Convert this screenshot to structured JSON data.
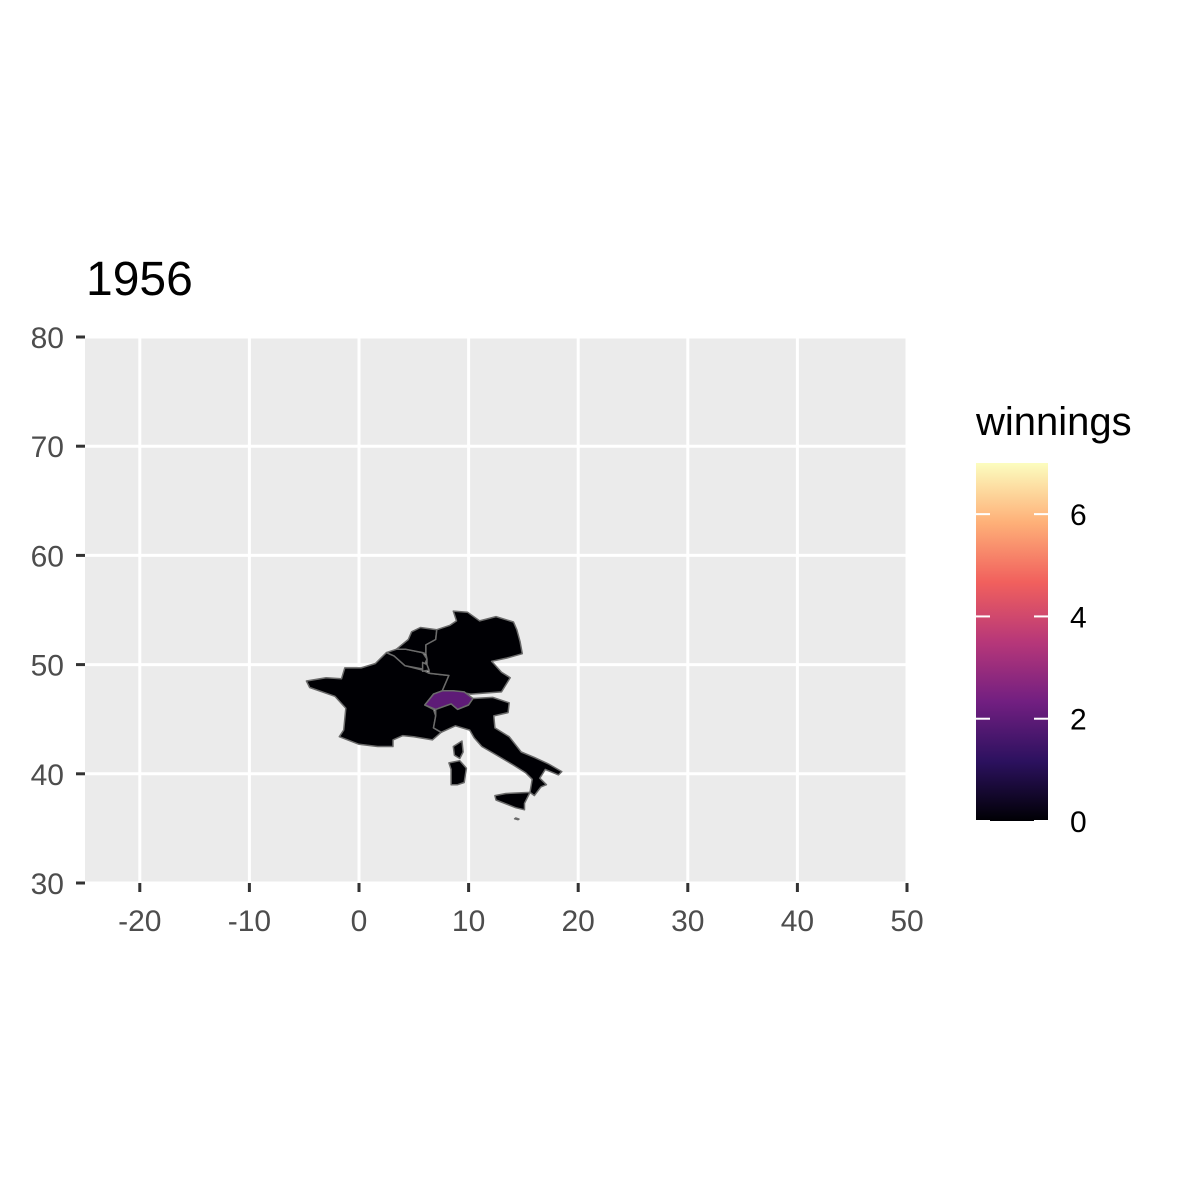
{
  "title": "1956",
  "chart_data": {
    "type": "choropleth-map",
    "title": "1956",
    "xlim": [
      -25,
      50
    ],
    "ylim": [
      30,
      80
    ],
    "x_ticks": [
      -20,
      -10,
      0,
      10,
      20,
      30,
      40,
      50
    ],
    "x_tick_labels": [
      "-20",
      "-10",
      "0",
      "10",
      "20",
      "30",
      "40",
      "50"
    ],
    "y_ticks": [
      30,
      40,
      50,
      60,
      70,
      80
    ],
    "y_tick_labels": [
      "30",
      "40",
      "50",
      "60",
      "70",
      "80"
    ],
    "grid": true,
    "background": "#ebebeb",
    "border_color": "#6b6b6b",
    "fill_variable": "winnings",
    "regions": [
      {
        "name": "France",
        "value": 0,
        "polygons": [
          [
            [
              -4.8,
              48.5
            ],
            [
              -3.0,
              48.8
            ],
            [
              -1.6,
              48.7
            ],
            [
              -1.3,
              49.7
            ],
            [
              0.2,
              49.7
            ],
            [
              1.5,
              50.1
            ],
            [
              2.5,
              51.1
            ],
            [
              3.2,
              50.8
            ],
            [
              4.2,
              49.9
            ],
            [
              5.8,
              49.5
            ],
            [
              6.4,
              49.2
            ],
            [
              8.2,
              49.0
            ],
            [
              7.6,
              47.6
            ],
            [
              6.8,
              47.3
            ],
            [
              6.0,
              46.3
            ],
            [
              6.8,
              45.9
            ],
            [
              7.0,
              45.3
            ],
            [
              6.8,
              44.2
            ],
            [
              7.5,
              43.8
            ],
            [
              6.7,
              43.1
            ],
            [
              5.0,
              43.4
            ],
            [
              4.0,
              43.5
            ],
            [
              3.1,
              43.1
            ],
            [
              3.1,
              42.5
            ],
            [
              1.7,
              42.5
            ],
            [
              0.0,
              42.7
            ],
            [
              -1.8,
              43.4
            ],
            [
              -1.4,
              44.0
            ],
            [
              -1.2,
              46.0
            ],
            [
              -2.2,
              47.1
            ],
            [
              -4.5,
              47.9
            ]
          ]
        ]
      },
      {
        "name": "Corsica",
        "value": 0,
        "polygons": [
          [
            [
              9.4,
              43.0
            ],
            [
              9.5,
              42.0
            ],
            [
              9.2,
              41.4
            ],
            [
              8.7,
              41.7
            ],
            [
              8.6,
              42.5
            ]
          ]
        ]
      },
      {
        "name": "Belgium",
        "value": 0,
        "polygons": [
          [
            [
              2.5,
              51.1
            ],
            [
              3.4,
              51.4
            ],
            [
              4.3,
              51.4
            ],
            [
              5.8,
              51.1
            ],
            [
              6.2,
              50.5
            ],
            [
              5.8,
              49.6
            ],
            [
              4.2,
              49.9
            ],
            [
              3.2,
              50.8
            ]
          ]
        ]
      },
      {
        "name": "Luxembourg",
        "value": 0,
        "polygons": [
          [
            [
              5.8,
              50.2
            ],
            [
              6.2,
              50.0
            ],
            [
              6.4,
              49.5
            ],
            [
              5.8,
              49.4
            ]
          ]
        ]
      },
      {
        "name": "Netherlands",
        "value": 0,
        "polygons": [
          [
            [
              3.4,
              51.4
            ],
            [
              4.5,
              52.3
            ],
            [
              4.8,
              53.0
            ],
            [
              5.6,
              53.4
            ],
            [
              7.1,
              53.2
            ],
            [
              7.0,
              52.3
            ],
            [
              6.1,
              51.8
            ],
            [
              6.1,
              51.0
            ],
            [
              5.8,
              51.1
            ],
            [
              4.3,
              51.4
            ]
          ]
        ]
      },
      {
        "name": "Germany",
        "value": 0,
        "polygons": [
          [
            [
              7.1,
              53.2
            ],
            [
              8.3,
              53.6
            ],
            [
              8.9,
              54.0
            ],
            [
              8.6,
              54.9
            ],
            [
              9.9,
              54.8
            ],
            [
              11.0,
              54.0
            ],
            [
              12.5,
              54.4
            ],
            [
              14.1,
              53.9
            ],
            [
              14.4,
              53.2
            ],
            [
              14.7,
              52.1
            ],
            [
              14.9,
              51.0
            ],
            [
              13.5,
              50.6
            ],
            [
              12.1,
              50.3
            ],
            [
              13.0,
              49.3
            ],
            [
              13.8,
              48.8
            ],
            [
              13.0,
              47.5
            ],
            [
              10.2,
              47.3
            ],
            [
              8.6,
              47.6
            ],
            [
              7.6,
              47.6
            ],
            [
              8.2,
              49.0
            ],
            [
              6.4,
              49.2
            ],
            [
              6.4,
              49.5
            ],
            [
              6.2,
              50.0
            ],
            [
              6.2,
              50.5
            ],
            [
              6.1,
              51.0
            ],
            [
              6.1,
              51.8
            ],
            [
              7.0,
              52.3
            ]
          ]
        ]
      },
      {
        "name": "Switzerland",
        "value": 2,
        "polygons": [
          [
            [
              6.0,
              46.3
            ],
            [
              6.8,
              47.3
            ],
            [
              7.6,
              47.6
            ],
            [
              8.6,
              47.6
            ],
            [
              9.6,
              47.5
            ],
            [
              10.4,
              46.9
            ],
            [
              10.0,
              46.3
            ],
            [
              9.0,
              45.9
            ],
            [
              8.4,
              46.4
            ],
            [
              7.0,
              45.9
            ]
          ]
        ]
      },
      {
        "name": "Italy",
        "value": 0,
        "polygons": [
          [
            [
              7.0,
              45.9
            ],
            [
              8.4,
              46.4
            ],
            [
              9.0,
              45.9
            ],
            [
              10.0,
              46.3
            ],
            [
              10.4,
              46.9
            ],
            [
              12.2,
              47.0
            ],
            [
              13.7,
              46.5
            ],
            [
              13.6,
              45.6
            ],
            [
              12.3,
              45.3
            ],
            [
              12.4,
              44.2
            ],
            [
              13.7,
              43.4
            ],
            [
              14.8,
              42.0
            ],
            [
              16.0,
              41.5
            ],
            [
              17.3,
              40.9
            ],
            [
              18.5,
              40.2
            ],
            [
              18.2,
              39.9
            ],
            [
              17.0,
              40.4
            ],
            [
              16.5,
              39.6
            ],
            [
              17.1,
              39.0
            ],
            [
              16.6,
              38.8
            ],
            [
              16.0,
              38.0
            ],
            [
              15.6,
              38.3
            ],
            [
              15.8,
              39.5
            ],
            [
              15.2,
              40.1
            ],
            [
              14.1,
              40.8
            ],
            [
              12.4,
              41.8
            ],
            [
              11.2,
              42.5
            ],
            [
              10.5,
              43.3
            ],
            [
              10.1,
              44.0
            ],
            [
              8.8,
              44.4
            ],
            [
              7.5,
              43.8
            ],
            [
              6.8,
              44.2
            ],
            [
              7.0,
              45.3
            ]
          ]
        ]
      },
      {
        "name": "Sicily",
        "value": 0,
        "polygons": [
          [
            [
              12.4,
              38.0
            ],
            [
              13.4,
              38.2
            ],
            [
              15.6,
              38.3
            ],
            [
              15.1,
              37.3
            ],
            [
              15.1,
              36.7
            ],
            [
              14.3,
              36.9
            ],
            [
              12.5,
              37.6
            ]
          ]
        ]
      },
      {
        "name": "Sardinia",
        "value": 0,
        "polygons": [
          [
            [
              8.2,
              41.0
            ],
            [
              9.2,
              41.2
            ],
            [
              9.8,
              40.5
            ],
            [
              9.6,
              39.2
            ],
            [
              9.0,
              39.0
            ],
            [
              8.4,
              39.0
            ],
            [
              8.4,
              40.4
            ]
          ]
        ]
      },
      {
        "name": "Malta",
        "value": 0,
        "polygons": [
          [
            [
              14.3,
              35.95
            ],
            [
              14.6,
              35.85
            ],
            [
              14.5,
              35.8
            ],
            [
              14.2,
              35.88
            ]
          ]
        ]
      }
    ],
    "legend": {
      "title": "winnings",
      "position": "right",
      "min": 0,
      "max": 7,
      "breaks": [
        0,
        2,
        4,
        6
      ],
      "break_labels": [
        "0",
        "2",
        "4",
        "6"
      ],
      "colors": [
        "#000004",
        "#2c115f",
        "#721f81",
        "#b73779",
        "#f1605d",
        "#feb078",
        "#fcfdbf"
      ]
    }
  }
}
